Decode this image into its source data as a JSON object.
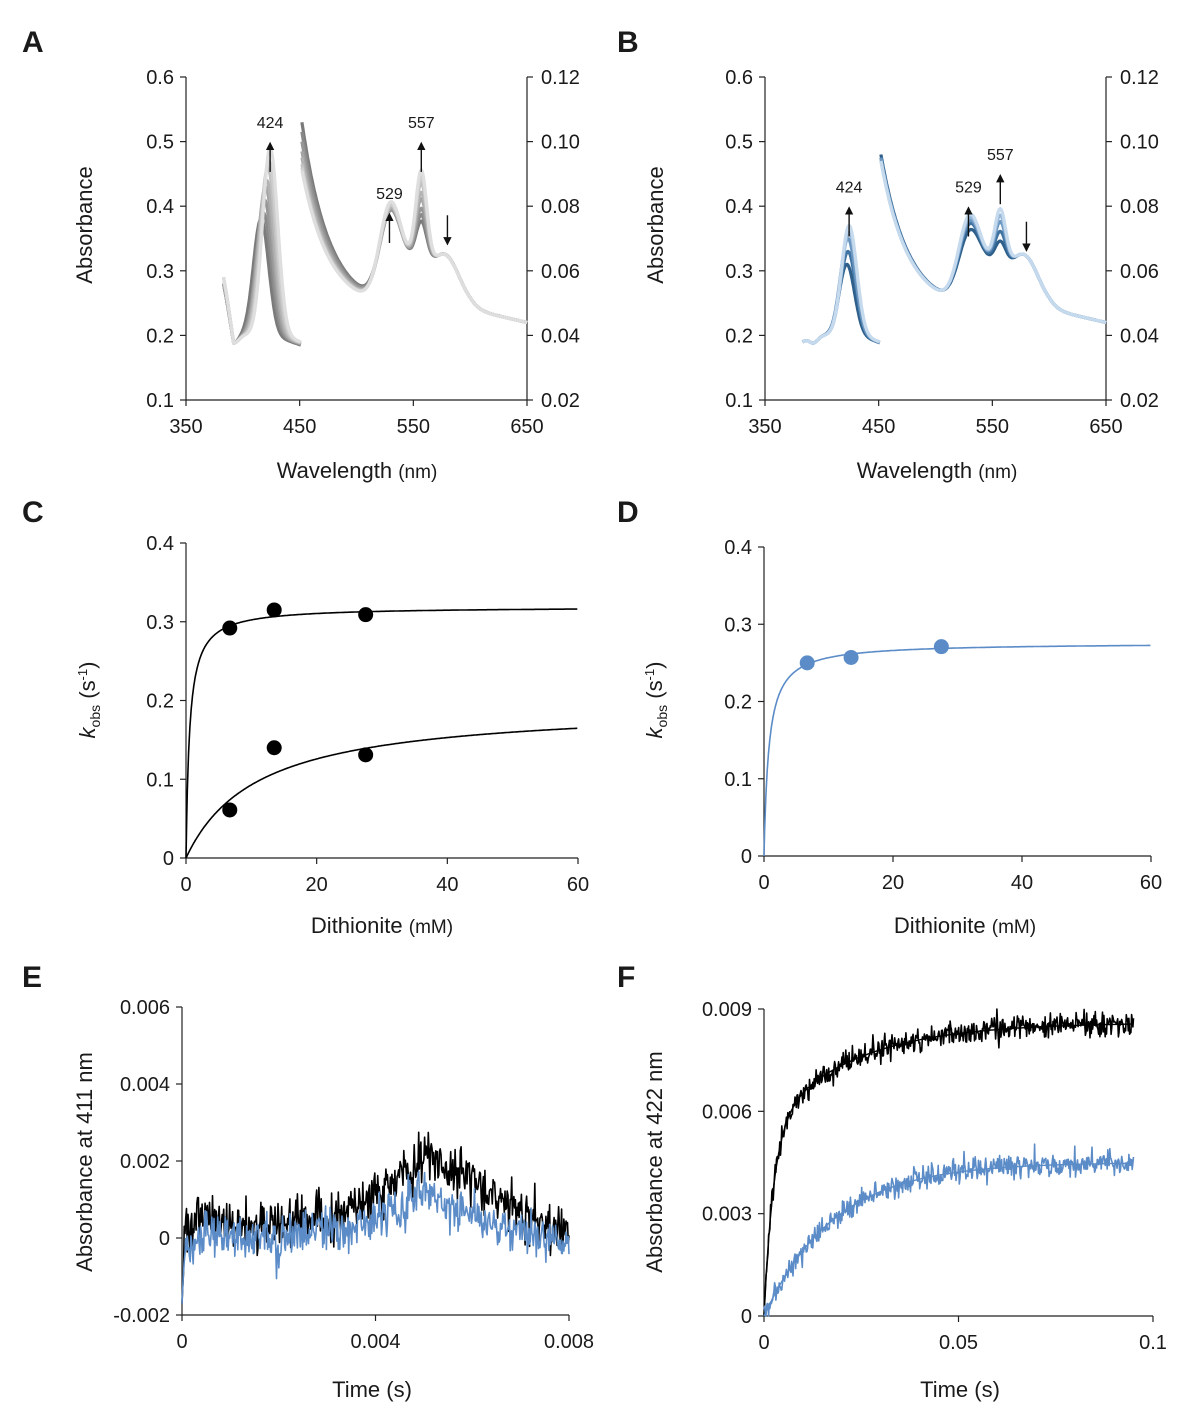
{
  "chart_data": [
    {
      "panel": "A",
      "type": "line",
      "xlabel": "Wavelength",
      "xunit": "(nm)",
      "ylabel": "Absorbance",
      "xlim": [
        350,
        650
      ],
      "ylim": [
        0.1,
        0.6
      ],
      "y2lim": [
        0.02,
        0.12
      ],
      "xticks": [
        350,
        450,
        550,
        650
      ],
      "yticks": [
        "0.1",
        "0.2",
        "0.3",
        "0.4",
        "0.5",
        "0.6"
      ],
      "y2ticks": [
        "0.02",
        "0.04",
        "0.06",
        "0.08",
        "0.10",
        "0.12"
      ],
      "soret_start": [
        0.28,
        0.28,
        0.28,
        0.28,
        0.29,
        0.29,
        0.29,
        0.29
      ],
      "soret_peak": [
        0.38,
        0.39,
        0.41,
        0.43,
        0.44,
        0.46,
        0.47,
        0.49
      ],
      "soret_peak_nm": [
        416,
        418,
        419,
        420,
        421,
        422,
        423,
        424
      ],
      "visible_start": [
        0.106,
        0.103,
        0.1,
        0.097,
        0.095,
        0.093,
        0.092,
        0.091
      ],
      "visible_529": [
        0.082,
        0.082,
        0.082,
        0.083,
        0.083,
        0.084,
        0.084,
        0.085
      ],
      "visible_557": [
        0.08,
        0.082,
        0.084,
        0.087,
        0.089,
        0.092,
        0.094,
        0.096
      ],
      "colors": [
        "#7a7a7a",
        "#888888",
        "#969696",
        "#a4a4a4",
        "#b2b2b2",
        "#c0c0c0",
        "#cecece",
        "#dedede"
      ],
      "annotations": [
        {
          "label": "424",
          "x": 424,
          "y": 0.515,
          "dir": "up"
        },
        {
          "label": "529",
          "x": 529,
          "y": 0.405,
          "dir": "up"
        },
        {
          "label": "557",
          "x": 557,
          "y": 0.515,
          "dir": "up"
        },
        {
          "label": "",
          "x": 580,
          "y": 0.355,
          "dir": "down"
        }
      ]
    },
    {
      "panel": "B",
      "type": "line",
      "xlabel": "Wavelength",
      "xunit": "(nm)",
      "ylabel": "Absorbance",
      "xlim": [
        350,
        650
      ],
      "ylim": [
        0.1,
        0.6
      ],
      "y2lim": [
        0.02,
        0.12
      ],
      "xticks": [
        350,
        450,
        550,
        650
      ],
      "yticks": [
        "0.1",
        "0.2",
        "0.3",
        "0.4",
        "0.5",
        "0.6"
      ],
      "y2ticks": [
        "0.02",
        "0.04",
        "0.06",
        "0.08",
        "0.10",
        "0.12"
      ],
      "soret_start": [
        0.19,
        0.19,
        0.19,
        0.19,
        0.19
      ],
      "soret_peak": [
        0.31,
        0.33,
        0.35,
        0.36,
        0.37
      ],
      "soret_peak_nm": [
        422,
        423,
        423,
        424,
        424
      ],
      "visible_start": [
        0.096,
        0.095,
        0.095,
        0.094,
        0.094
      ],
      "visible_529": [
        0.076,
        0.078,
        0.079,
        0.08,
        0.081
      ],
      "visible_557": [
        0.074,
        0.077,
        0.08,
        0.082,
        0.084
      ],
      "colors": [
        "#2e5f8a",
        "#3f73a2",
        "#6b96c0",
        "#98b8d9",
        "#c6daee"
      ],
      "annotations": [
        {
          "label": "424",
          "x": 424,
          "y": 0.415,
          "dir": "up"
        },
        {
          "label": "529",
          "x": 529,
          "y": 0.415,
          "dir": "up"
        },
        {
          "label": "557",
          "x": 557,
          "y": 0.465,
          "dir": "up"
        },
        {
          "label": "",
          "x": 580,
          "y": 0.345,
          "dir": "down"
        }
      ]
    },
    {
      "panel": "C",
      "type": "scatter",
      "xlabel": "Dithionite",
      "xunit": "(mM)",
      "ylabel_main": "k",
      "ylabel_sub": "obs",
      "ylabel_rest": " (s",
      "ylabel_sup": "-1",
      "ylabel_close": ")",
      "xlim": [
        0,
        60
      ],
      "ylim": [
        0,
        0.4
      ],
      "xticks": [
        "0",
        "20",
        "40",
        "60"
      ],
      "yticks": [
        "0",
        "0.1",
        "0.2",
        "0.3",
        "0.4"
      ],
      "series": [
        {
          "name": "fast",
          "color": "#000000",
          "x": [
            6.7,
            13.5,
            27.5
          ],
          "y": [
            0.292,
            0.315,
            0.309
          ],
          "fit": {
            "kmax": 0.319,
            "K": 0.55
          }
        },
        {
          "name": "slow",
          "color": "#000000",
          "x": [
            6.7,
            13.5,
            27.5
          ],
          "y": [
            0.061,
            0.14,
            0.131
          ],
          "fit": {
            "kmax": 0.195,
            "K": 11
          }
        }
      ]
    },
    {
      "panel": "D",
      "type": "scatter",
      "xlabel": "Dithionite",
      "xunit": "(mM)",
      "ylabel_main": "k",
      "ylabel_sub": "obs",
      "ylabel_rest": " (s",
      "ylabel_sup": "-1",
      "ylabel_close": ")",
      "xlim": [
        0,
        60
      ],
      "ylim": [
        0,
        0.4
      ],
      "xticks": [
        "0",
        "20",
        "40",
        "60"
      ],
      "yticks": [
        "0",
        "0.1",
        "0.2",
        "0.3",
        "0.4"
      ],
      "series": [
        {
          "name": "fast",
          "color": "#5b8cc8",
          "x": [
            6.7,
            13.5,
            27.5
          ],
          "y": [
            0.25,
            0.257,
            0.271
          ],
          "fit": {
            "kmax": 0.276,
            "K": 0.75
          }
        }
      ]
    },
    {
      "panel": "E",
      "type": "line",
      "xlabel": "Time (s)",
      "ylabel": "Absorbance at 411 nm",
      "xlim": [
        0,
        0.008
      ],
      "ylim": [
        -0.002,
        0.006
      ],
      "xticks": [
        "0",
        "0.004",
        "0.008"
      ],
      "yticks": [
        "-0.002",
        "0",
        "0.002",
        "0.004",
        "0.006"
      ],
      "series": [
        {
          "name": "black",
          "color": "#000000",
          "x": [
            0,
            0.0005,
            0.001,
            0.0015,
            0.002,
            0.0025,
            0.003,
            0.0035,
            0.004,
            0.0045,
            0.005,
            0.0055,
            0.006,
            0.0065,
            0.007,
            0.0075,
            0.008
          ],
          "y": [
            0.0002,
            0.0005,
            0.0004,
            0.0003,
            0.0004,
            0.0005,
            0.0005,
            0.0007,
            0.0012,
            0.0016,
            0.0022,
            0.0018,
            0.0015,
            0.0011,
            0.0007,
            0.0004,
            0.0002
          ],
          "noise": 0.00032
        },
        {
          "name": "blue",
          "color": "#5b8cc8",
          "x": [
            0,
            0.0005,
            0.001,
            0.0015,
            0.002,
            0.0025,
            0.003,
            0.0035,
            0.004,
            0.0045,
            0.005,
            0.0055,
            0.006,
            0.0065,
            0.007,
            0.0075,
            0.008
          ],
          "y": [
            -0.0004,
            0.0001,
            0.0001,
            0.0001,
            0.0,
            0.0001,
            0.0002,
            0.0003,
            0.0005,
            0.0007,
            0.0012,
            0.0008,
            0.0006,
            0.0003,
            0.0001,
            0.0,
            -0.0002
          ],
          "noise": 0.00028
        }
      ]
    },
    {
      "panel": "F",
      "type": "line",
      "xlabel": "Time (s)",
      "ylabel": "Absorbance at 422 nm",
      "xlim": [
        0,
        0.1
      ],
      "ylim": [
        0,
        0.009
      ],
      "xticks": [
        "0",
        "0.05",
        "0.1"
      ],
      "yticks": [
        "0",
        "0.003",
        "0.006",
        "0.009"
      ],
      "xend": 0.095,
      "series": [
        {
          "name": "black",
          "color": "#000000",
          "phases": [
            {
              "amp": 0.0055,
              "tau": 0.0025
            },
            {
              "amp": 0.0031,
              "tau": 0.022
            }
          ],
          "noise": 0.00018
        },
        {
          "name": "blue",
          "color": "#5b8cc8",
          "phases": [
            {
              "amp": 0.0045,
              "tau": 0.018
            }
          ],
          "noise": 0.00018
        }
      ]
    }
  ]
}
